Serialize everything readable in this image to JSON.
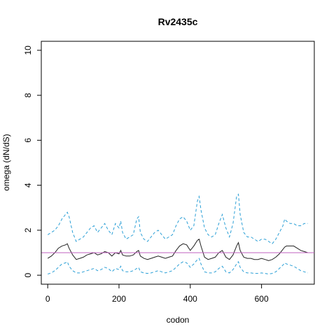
{
  "chart_data": {
    "type": "line",
    "title": "Rv2435c",
    "xlabel": "codon",
    "ylabel": "omega (dN/dS)",
    "xlim": [
      -18,
      748
    ],
    "ylim": [
      -0.4,
      10.4
    ],
    "x_ticks": [
      0,
      200,
      400,
      600
    ],
    "y_ticks": [
      0,
      2,
      4,
      6,
      8,
      10
    ],
    "x_tick_labels": [
      "0",
      "200",
      "400",
      "600"
    ],
    "y_tick_labels": [
      "0",
      "2",
      "4",
      "6",
      "8",
      "10"
    ],
    "reference_line": {
      "y": 1.0,
      "color": "#c060c0"
    },
    "grid": false,
    "series": [
      {
        "role": "upper",
        "color": "#2a9fd6",
        "style": "dashed",
        "x": [
          0,
          10,
          20,
          30,
          40,
          50,
          55,
          60,
          70,
          80,
          90,
          100,
          110,
          120,
          130,
          140,
          150,
          160,
          170,
          180,
          190,
          200,
          205,
          210,
          220,
          230,
          240,
          250,
          255,
          260,
          270,
          280,
          290,
          300,
          310,
          320,
          330,
          340,
          350,
          360,
          370,
          380,
          390,
          400,
          410,
          420,
          425,
          430,
          440,
          450,
          460,
          470,
          480,
          490,
          500,
          510,
          520,
          530,
          535,
          540,
          550,
          560,
          570,
          580,
          590,
          600,
          610,
          620,
          630,
          640,
          650,
          660,
          665,
          670,
          680,
          690,
          700,
          710,
          720,
          730
        ],
        "y": [
          1.8,
          1.9,
          2.0,
          2.2,
          2.5,
          2.7,
          2.8,
          2.6,
          1.9,
          1.5,
          1.6,
          1.7,
          1.9,
          2.1,
          2.2,
          1.9,
          2.1,
          2.3,
          2.0,
          1.8,
          2.3,
          2.1,
          2.4,
          1.9,
          1.6,
          1.7,
          1.8,
          2.5,
          2.6,
          1.9,
          1.6,
          1.5,
          1.7,
          1.9,
          2.0,
          1.8,
          1.6,
          1.7,
          1.8,
          2.2,
          2.5,
          2.6,
          2.4,
          2.0,
          2.2,
          3.3,
          3.5,
          2.9,
          2.1,
          1.8,
          1.7,
          1.8,
          2.3,
          2.7,
          2.1,
          1.7,
          2.3,
          3.5,
          3.6,
          2.7,
          1.9,
          1.7,
          1.7,
          1.6,
          1.5,
          1.6,
          1.6,
          1.5,
          1.4,
          1.6,
          1.9,
          2.2,
          2.5,
          2.4,
          2.3,
          2.3,
          2.2,
          2.2,
          2.3,
          2.3
        ]
      },
      {
        "role": "estimate",
        "color": "#222222",
        "style": "solid",
        "x": [
          0,
          10,
          20,
          30,
          40,
          50,
          55,
          60,
          70,
          80,
          90,
          100,
          110,
          120,
          130,
          140,
          150,
          160,
          170,
          180,
          190,
          200,
          205,
          210,
          220,
          230,
          240,
          250,
          255,
          260,
          270,
          280,
          290,
          300,
          310,
          320,
          330,
          340,
          350,
          360,
          370,
          380,
          390,
          400,
          410,
          420,
          425,
          430,
          440,
          450,
          460,
          470,
          480,
          490,
          500,
          510,
          520,
          530,
          535,
          540,
          550,
          560,
          570,
          580,
          590,
          600,
          610,
          620,
          630,
          640,
          650,
          660,
          665,
          670,
          680,
          690,
          700,
          710,
          720,
          730
        ],
        "y": [
          0.75,
          0.85,
          1.0,
          1.2,
          1.3,
          1.35,
          1.4,
          1.2,
          0.9,
          0.7,
          0.75,
          0.8,
          0.9,
          0.95,
          1.0,
          0.9,
          0.95,
          1.05,
          1.0,
          0.85,
          1.0,
          0.95,
          1.1,
          0.9,
          0.85,
          0.85,
          0.9,
          1.05,
          1.1,
          0.85,
          0.75,
          0.7,
          0.75,
          0.8,
          0.85,
          0.8,
          0.75,
          0.8,
          0.85,
          1.1,
          1.3,
          1.4,
          1.35,
          1.1,
          1.3,
          1.55,
          1.6,
          1.3,
          0.8,
          0.7,
          0.75,
          0.8,
          1.0,
          1.1,
          0.8,
          0.7,
          0.9,
          1.3,
          1.45,
          1.1,
          0.8,
          0.75,
          0.75,
          0.7,
          0.7,
          0.75,
          0.7,
          0.65,
          0.7,
          0.8,
          0.95,
          1.15,
          1.25,
          1.3,
          1.3,
          1.3,
          1.2,
          1.1,
          1.05,
          1.0
        ]
      },
      {
        "role": "lower",
        "color": "#2a9fd6",
        "style": "dashed",
        "x": [
          0,
          10,
          20,
          30,
          40,
          50,
          55,
          60,
          70,
          80,
          90,
          100,
          110,
          120,
          130,
          140,
          150,
          160,
          170,
          180,
          190,
          200,
          205,
          210,
          220,
          230,
          240,
          250,
          255,
          260,
          270,
          280,
          290,
          300,
          310,
          320,
          330,
          340,
          350,
          360,
          370,
          380,
          390,
          400,
          410,
          420,
          425,
          430,
          440,
          450,
          460,
          470,
          480,
          490,
          500,
          510,
          520,
          530,
          535,
          540,
          550,
          560,
          570,
          580,
          590,
          600,
          610,
          620,
          630,
          640,
          650,
          660,
          665,
          670,
          680,
          690,
          700,
          710,
          720,
          730
        ],
        "y": [
          0.05,
          0.1,
          0.2,
          0.35,
          0.5,
          0.55,
          0.6,
          0.4,
          0.2,
          0.1,
          0.1,
          0.15,
          0.2,
          0.25,
          0.3,
          0.2,
          0.25,
          0.35,
          0.3,
          0.15,
          0.3,
          0.25,
          0.4,
          0.2,
          0.15,
          0.15,
          0.2,
          0.3,
          0.35,
          0.15,
          0.1,
          0.08,
          0.1,
          0.15,
          0.2,
          0.15,
          0.1,
          0.15,
          0.2,
          0.35,
          0.5,
          0.6,
          0.55,
          0.35,
          0.5,
          0.7,
          0.75,
          0.5,
          0.15,
          0.1,
          0.1,
          0.15,
          0.3,
          0.4,
          0.15,
          0.1,
          0.25,
          0.5,
          0.6,
          0.35,
          0.15,
          0.1,
          0.1,
          0.08,
          0.08,
          0.1,
          0.08,
          0.05,
          0.08,
          0.15,
          0.3,
          0.45,
          0.55,
          0.5,
          0.45,
          0.4,
          0.3,
          0.2,
          0.15,
          0.1
        ]
      }
    ]
  }
}
